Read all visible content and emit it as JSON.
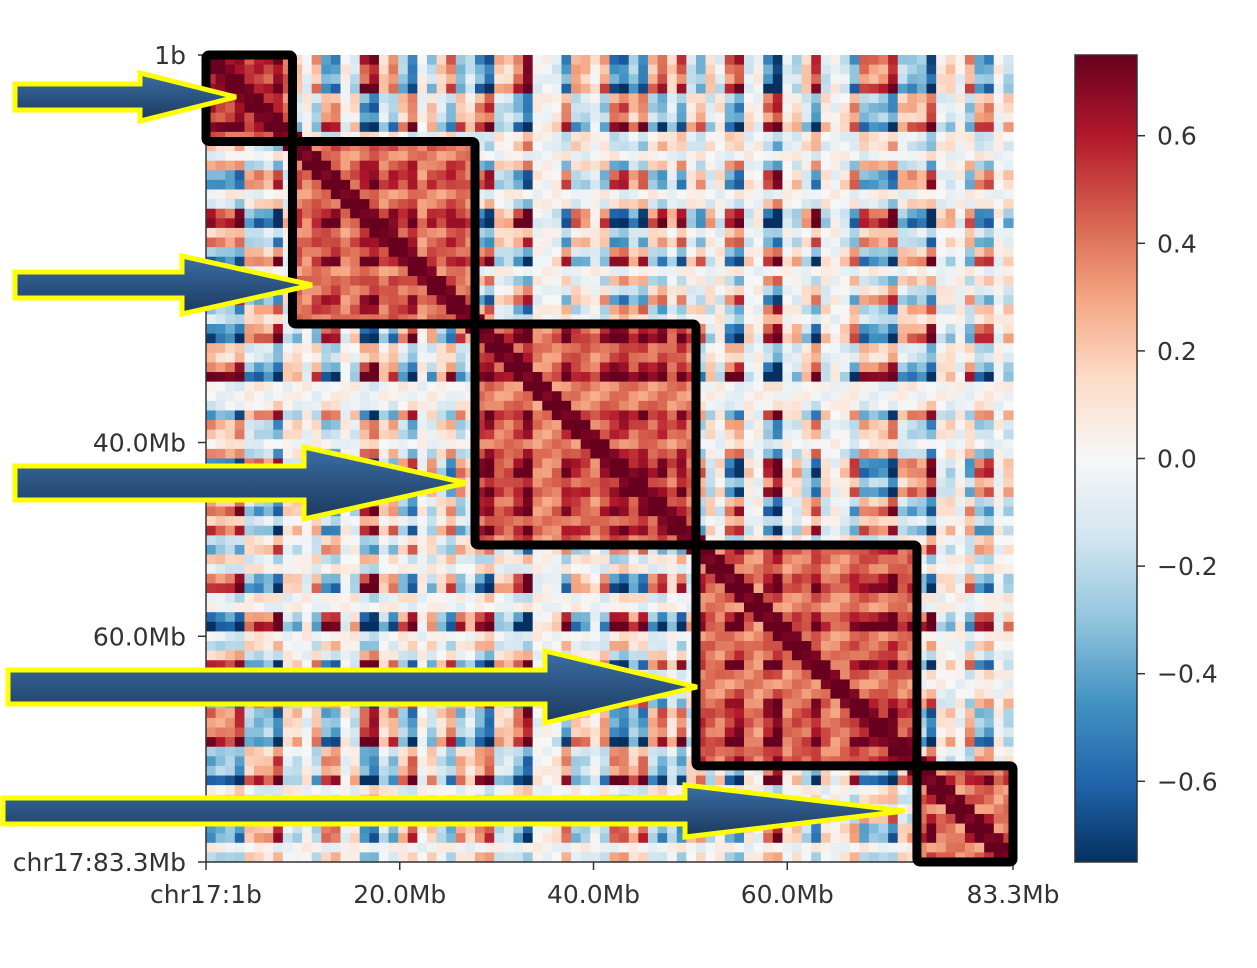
{
  "chart_data": {
    "type": "heatmap",
    "title": "",
    "xlabel": "",
    "ylabel": "",
    "matrix_bins": 84,
    "genomic_range_mb": [
      0,
      83.3
    ],
    "x_ticks": [
      {
        "label": "chr17:1b",
        "value": 0
      },
      {
        "label": "20.0Mb",
        "value": 20.0
      },
      {
        "label": "40.0Mb",
        "value": 40.0
      },
      {
        "label": "60.0Mb",
        "value": 60.0
      },
      {
        "label": "83.3Mb",
        "value": 83.3
      }
    ],
    "y_ticks": [
      {
        "label": "1b",
        "value": 0
      },
      {
        "label": "40.0Mb",
        "value": 40.0
      },
      {
        "label": "60.0Mb",
        "value": 60.0
      },
      {
        "label": "chr17:83.3Mb",
        "value": 83.3
      }
    ],
    "colorbar": {
      "range": [
        -0.75,
        0.75
      ],
      "ticks": [
        "0.6",
        "0.4",
        "0.2",
        "0.0",
        "−0.2",
        "−0.4",
        "−0.6"
      ],
      "tick_values": [
        0.6,
        0.4,
        0.2,
        0.0,
        -0.2,
        -0.4,
        -0.6
      ],
      "colormap": "RdBu_r",
      "colors": [
        "#053061",
        "#2166ac",
        "#4393c3",
        "#92c5de",
        "#d1e5f0",
        "#f7f7f7",
        "#fddbc7",
        "#f4a582",
        "#d6604d",
        "#b2182b",
        "#67001f"
      ]
    },
    "compartment_blocks": [
      {
        "start_bin": 0,
        "end_bin": 9
      },
      {
        "start_bin": 9,
        "end_bin": 28
      },
      {
        "start_bin": 28,
        "end_bin": 51
      },
      {
        "start_bin": 51,
        "end_bin": 74
      },
      {
        "start_bin": 74,
        "end_bin": 84
      }
    ],
    "arrows": [
      {
        "points_to_block": 0
      },
      {
        "points_to_block": 1
      },
      {
        "points_to_block": 2
      },
      {
        "points_to_block": 3
      },
      {
        "points_to_block": 4
      }
    ]
  },
  "styles": {
    "block_outline_color": "#000000",
    "arrow_fill_dark": "#1b3a5e",
    "arrow_fill_light": "#3b6ea5",
    "arrow_outline_color": "#ffff00"
  }
}
